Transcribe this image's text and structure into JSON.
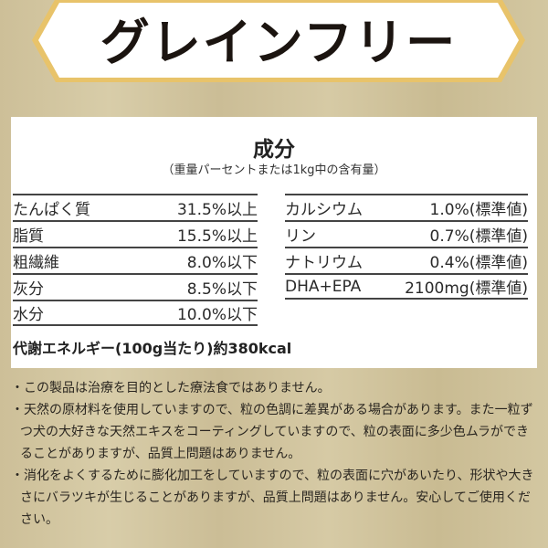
{
  "banner": {
    "title": "グレインフリー",
    "border_color": "#e8c36a"
  },
  "composition": {
    "title": "成分",
    "subtitle": "（重量パーセントまたは1kg中の含有量）",
    "left": [
      {
        "name": "たんぱく質",
        "value": "31.5%以上"
      },
      {
        "name": "脂質",
        "value": "15.5%以上"
      },
      {
        "name": "粗繊維",
        "value": "8.0%以下"
      },
      {
        "name": "灰分",
        "value": "8.5%以下"
      },
      {
        "name": "水分",
        "value": "10.0%以下"
      }
    ],
    "right": [
      {
        "name": "カルシウム",
        "value": "1.0%(標準値)"
      },
      {
        "name": "リン",
        "value": "0.7%(標準値)"
      },
      {
        "name": "ナトリウム",
        "value": "0.4%(標準値)"
      },
      {
        "name": "DHA+EPA",
        "value": "2100mg(標準値)"
      }
    ],
    "energy": "代謝エネルギー(100g当たり)約380kcal"
  },
  "notes": [
    "・この製品は治療を目的とした療法食ではありません。",
    "・天然の原材料を使用していますので、粒の色調に差異がある場合があります。また一粒ずつ犬の大好きな天然エキスをコーティングしていますので、粒の表面に多少色ムラができることがありますが、品質上問題はありません。",
    "・消化をよくするために膨化加工をしていますので、粒の表面に穴があいたり、形状や大きさにバラツキが生じることがありますが、品質上問題はありません。安心してご使用ください。"
  ]
}
